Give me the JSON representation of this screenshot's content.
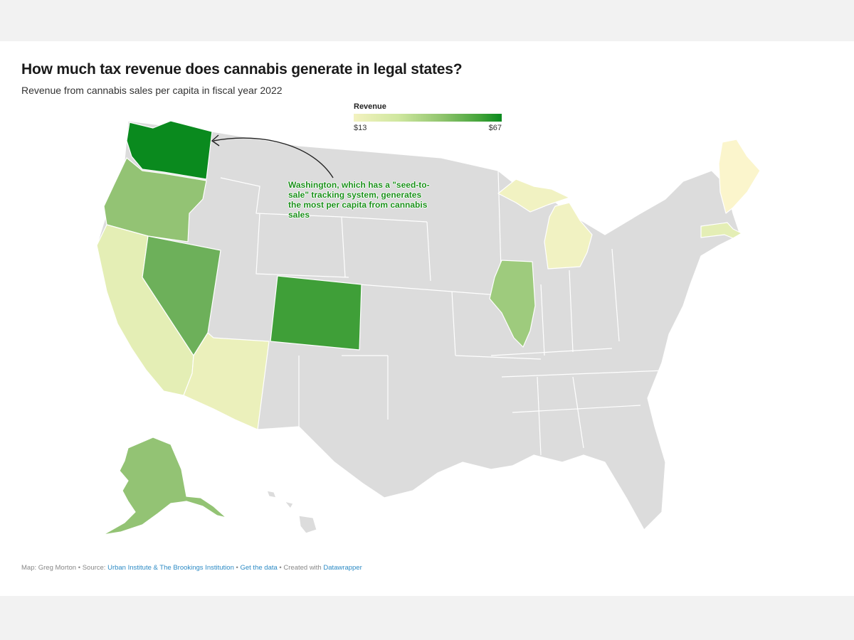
{
  "title": "How much tax revenue does cannabis generate in legal states?",
  "subtitle": "Revenue from cannabis sales per capita in fiscal year 2022",
  "legend": {
    "title": "Revenue",
    "min_label": "$13",
    "max_label": "$67",
    "min_color": "#f3f2c0",
    "max_color": "#0a8a1e"
  },
  "annotation": "Washington, which has a \"seed-to-sale\" tracking system, generates the most per capita from cannabis sales",
  "colors": {
    "no_data": "#dcdcdc",
    "highlight_text": "#1a8f1a"
  },
  "states": [
    {
      "name": "Washington",
      "color": "#0a8a1e"
    },
    {
      "name": "Colorado",
      "color": "#3f9f38"
    },
    {
      "name": "Nevada",
      "color": "#6db05a"
    },
    {
      "name": "Oregon",
      "color": "#93c374"
    },
    {
      "name": "Alaska",
      "color": "#93c374"
    },
    {
      "name": "Illinois",
      "color": "#9ecb7d"
    },
    {
      "name": "California",
      "color": "#e4eeb5"
    },
    {
      "name": "Arizona",
      "color": "#ebf0bb"
    },
    {
      "name": "Michigan",
      "color": "#f1f2c2"
    },
    {
      "name": "Maine",
      "color": "#fbf5cc"
    },
    {
      "name": "Massachusetts",
      "color": "#e4eeb5"
    }
  ],
  "footer": {
    "credit": "Map: Greg Morton",
    "sep1": " • Source: ",
    "source": "Urban Institute & The Brookings Institution",
    "sep2": " • ",
    "get_data": "Get the data",
    "sep3": " • Created with ",
    "tool": "Datawrapper"
  }
}
